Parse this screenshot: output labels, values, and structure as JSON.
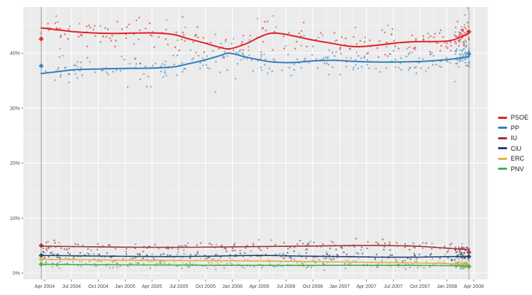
{
  "chart_data": {
    "type": "scatter",
    "title": "",
    "description": "Opinion poll scatter with smoothed trend lines per party, April 2004 - April 2008",
    "x_axis": {
      "tick_labels": [
        "Apr 2004",
        "Jul 2004",
        "Oct 2004",
        "Jan 2005",
        "Apr 2005",
        "Jul 2005",
        "Oct 2005",
        "Jan 2006",
        "Apr 2006",
        "Jul 2006",
        "Oct 2006",
        "Jan 2007",
        "Apr 2007",
        "Jul 2007",
        "Oct 2007",
        "Jan 2008",
        "Apr 2008"
      ]
    },
    "y_axis": {
      "tick_values": [
        0,
        10,
        20,
        30,
        40
      ],
      "tick_labels": [
        "0%",
        "10%",
        "20%",
        "30%",
        "40%"
      ],
      "range": [
        0,
        48
      ]
    },
    "panel_bg": "#ebebeb",
    "grid_major_color": "#ffffff",
    "grid_minor_color": "#f5f5f5",
    "axis_text_color": "#4d4d4d",
    "election_line_color": "#8a8a8a",
    "series": [
      {
        "name": "PSOE",
        "color": "#df2027",
        "point_color": "#e2414b",
        "trend": [
          [
            -0.13,
            44.6
          ],
          [
            0.6,
            44.2
          ],
          [
            1.1,
            43.9
          ],
          [
            1.8,
            43.7
          ],
          [
            2.6,
            43.6
          ],
          [
            4.0,
            43.7
          ],
          [
            4.8,
            43.4
          ],
          [
            5.3,
            42.7
          ],
          [
            6.0,
            41.8
          ],
          [
            6.5,
            41.1
          ],
          [
            6.9,
            40.8
          ],
          [
            7.5,
            41.7
          ],
          [
            8.0,
            42.9
          ],
          [
            8.4,
            43.6
          ],
          [
            8.9,
            43.5
          ],
          [
            10.0,
            42.4
          ],
          [
            10.7,
            41.8
          ],
          [
            11.3,
            41.3
          ],
          [
            11.8,
            41.2
          ],
          [
            12.5,
            41.5
          ],
          [
            13.2,
            41.9
          ],
          [
            13.8,
            42.1
          ],
          [
            15.0,
            42.2
          ],
          [
            15.5,
            42.9
          ],
          [
            15.82,
            43.6
          ]
        ],
        "scatter": {
          "count": 230,
          "sigma": 1.3,
          "cluster": 45
        }
      },
      {
        "name": "PP",
        "color": "#2f7dbe",
        "point_color": "#4f94cc",
        "trend": [
          [
            -0.13,
            36.3
          ],
          [
            0.6,
            36.7
          ],
          [
            1.1,
            37.0
          ],
          [
            1.8,
            37.1
          ],
          [
            2.6,
            37.2
          ],
          [
            4.0,
            37.3
          ],
          [
            4.8,
            37.5
          ],
          [
            5.3,
            38.0
          ],
          [
            6.0,
            38.8
          ],
          [
            6.5,
            39.5
          ],
          [
            6.9,
            40.0
          ],
          [
            7.5,
            39.3
          ],
          [
            8.0,
            38.8
          ],
          [
            8.5,
            38.4
          ],
          [
            9.2,
            38.3
          ],
          [
            10.0,
            38.6
          ],
          [
            10.8,
            38.7
          ],
          [
            11.6,
            38.5
          ],
          [
            12.4,
            38.4
          ],
          [
            13.2,
            38.4
          ],
          [
            14.0,
            38.5
          ],
          [
            14.7,
            38.7
          ],
          [
            15.3,
            39.0
          ],
          [
            15.82,
            39.4
          ]
        ],
        "scatter": {
          "count": 230,
          "sigma": 1.25,
          "cluster": 45
        }
      },
      {
        "name": "IU",
        "color": "#993137",
        "point_color": "#a04a50",
        "trend": [
          [
            -0.13,
            4.9
          ],
          [
            1.5,
            4.8
          ],
          [
            3.5,
            4.7
          ],
          [
            5.5,
            4.7
          ],
          [
            7.5,
            4.8
          ],
          [
            9.5,
            4.9
          ],
          [
            11.5,
            5.0
          ],
          [
            12.6,
            5.0
          ],
          [
            13.8,
            4.9
          ],
          [
            14.8,
            4.6
          ],
          [
            15.4,
            4.4
          ],
          [
            15.82,
            4.3
          ]
        ],
        "scatter": {
          "count": 170,
          "sigma": 0.45,
          "cluster": 25
        }
      },
      {
        "name": "CiU",
        "color": "#23406f",
        "point_color": "#3a567f",
        "trend": [
          [
            -0.13,
            3.2
          ],
          [
            2.0,
            3.1
          ],
          [
            4.5,
            3.0
          ],
          [
            6.5,
            3.1
          ],
          [
            8.0,
            3.2
          ],
          [
            9.5,
            3.1
          ],
          [
            11.0,
            3.0
          ],
          [
            12.5,
            2.9
          ],
          [
            14.0,
            2.9
          ],
          [
            15.2,
            3.0
          ],
          [
            15.82,
            3.0
          ]
        ],
        "scatter": {
          "count": 165,
          "sigma": 0.38,
          "cluster": 25
        }
      },
      {
        "name": "ERC",
        "color": "#e8ab49",
        "point_color": "#e3b15e",
        "trend": [
          [
            -0.13,
            2.5
          ],
          [
            1.8,
            2.4
          ],
          [
            4.0,
            2.3
          ],
          [
            6.0,
            2.25
          ],
          [
            8.0,
            2.2
          ],
          [
            9.8,
            2.1
          ],
          [
            11.5,
            2.0
          ],
          [
            13.0,
            1.9
          ],
          [
            14.2,
            1.8
          ],
          [
            15.2,
            1.7
          ],
          [
            15.82,
            1.6
          ]
        ],
        "scatter": {
          "count": 150,
          "sigma": 0.35,
          "cluster": 25
        }
      },
      {
        "name": "PNV",
        "color": "#43ad53",
        "point_color": "#5cb56a",
        "trend": [
          [
            -0.13,
            1.6
          ],
          [
            2.5,
            1.5
          ],
          [
            5.0,
            1.45
          ],
          [
            8.0,
            1.4
          ],
          [
            11.0,
            1.4
          ],
          [
            13.5,
            1.4
          ],
          [
            15.0,
            1.35
          ],
          [
            15.82,
            1.3
          ]
        ],
        "scatter": {
          "count": 140,
          "sigma": 0.3,
          "cluster": 25
        }
      }
    ],
    "elections": [
      {
        "q": -0.13,
        "results": [
          42.6,
          37.7,
          5.0,
          3.2,
          2.5,
          1.6
        ]
      },
      {
        "q": 15.82,
        "results": [
          43.9,
          39.9,
          3.8,
          3.0,
          1.2,
          1.2
        ]
      }
    ],
    "scatter_style": {
      "gray_color": "#8f9494",
      "gray_fraction": 0.22,
      "seed": 1234567,
      "point_size": 2.2,
      "opacity": 0.72
    },
    "legend": {
      "position": "right"
    }
  }
}
